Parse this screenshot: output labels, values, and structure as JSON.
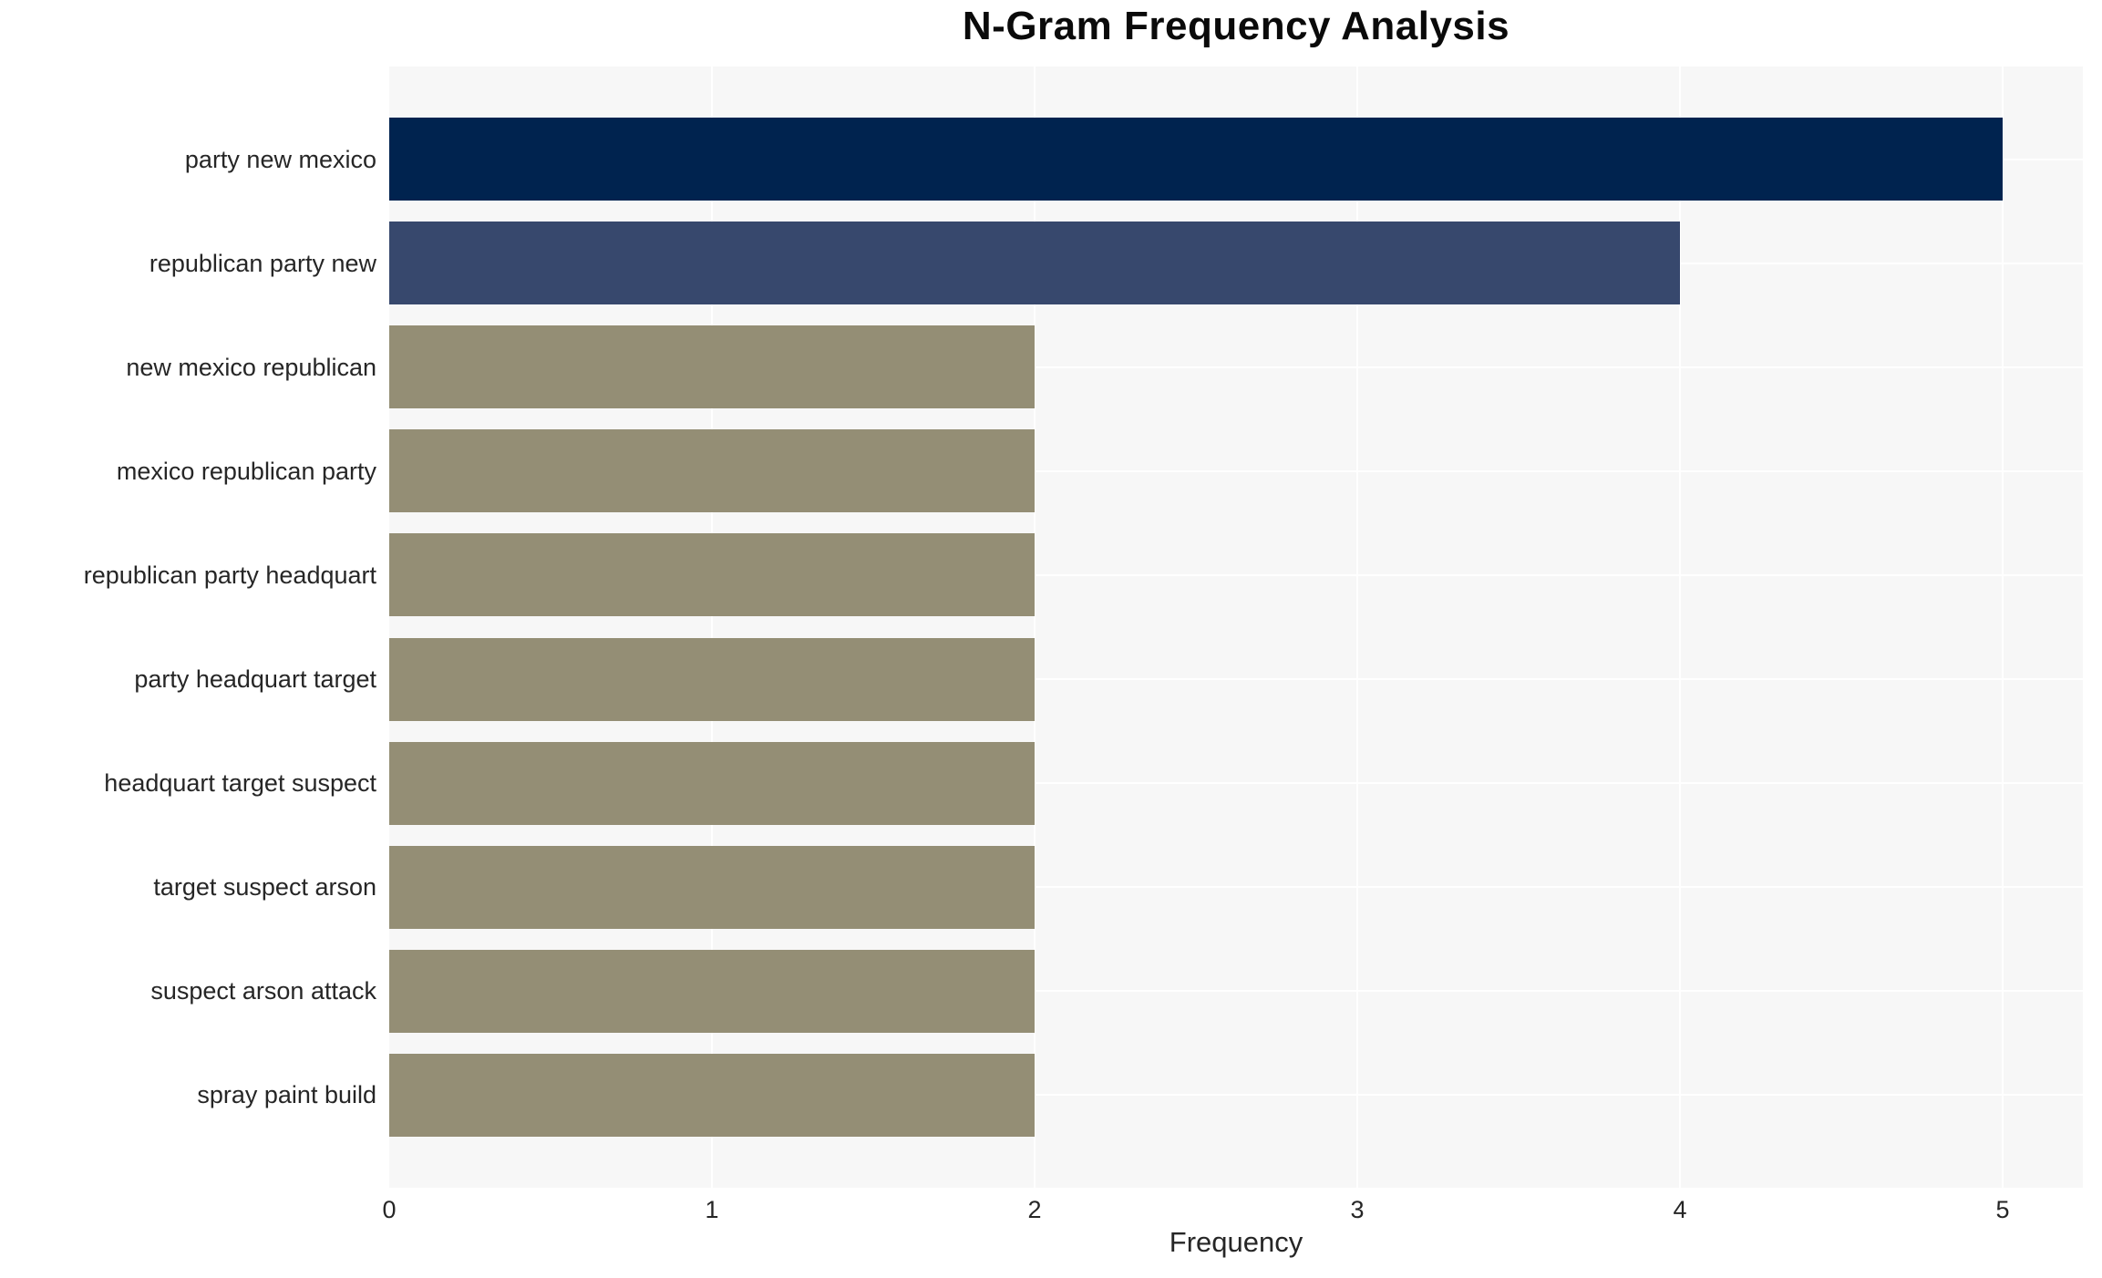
{
  "chart_data": {
    "type": "bar",
    "orientation": "horizontal",
    "title": "N-Gram Frequency Analysis",
    "xlabel": "Frequency",
    "ylabel": "",
    "categories": [
      "party new mexico",
      "republican party new",
      "new mexico republican",
      "mexico republican party",
      "republican party headquart",
      "party headquart target",
      "headquart target suspect",
      "target suspect arson",
      "suspect arson attack",
      "spray paint build"
    ],
    "values": [
      5,
      4,
      2,
      2,
      2,
      2,
      2,
      2,
      2,
      2
    ],
    "xticks": [
      0,
      1,
      2,
      3,
      4,
      5
    ],
    "xlim": [
      0,
      5.25
    ],
    "grid": true,
    "legend": false,
    "bar_colors": [
      "#00234F",
      "#37486D",
      "#948E75",
      "#948E75",
      "#948E75",
      "#948E75",
      "#948E75",
      "#948E75",
      "#948E75",
      "#948E75"
    ],
    "plot_bg_color": "#F7F7F7",
    "grid_color": "#FFFFFF",
    "text_color": "#262626",
    "title_color": "#0A0A0A"
  }
}
